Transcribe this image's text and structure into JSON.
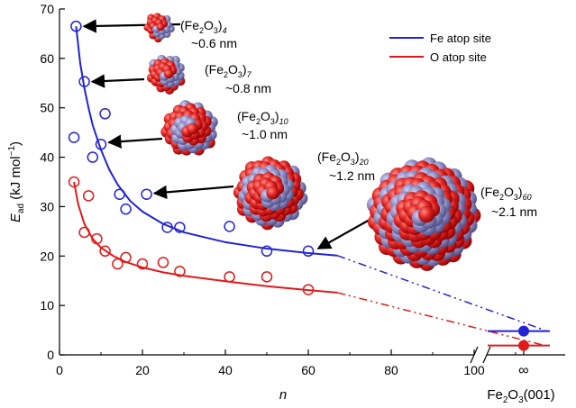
{
  "chart_data": {
    "type": "scatter",
    "title": "",
    "xlabel": "n",
    "ylabel_main": "E",
    "ylabel_sub": "ad",
    "ylabel_unit": "(kJ mol",
    "ylabel_unit_sup": "−1",
    "ylabel_unit_close": ")",
    "xlim": [
      0,
      115
    ],
    "ylim": [
      0,
      70
    ],
    "x_ticks": [
      "0",
      "20",
      "40",
      "60",
      "80",
      "100"
    ],
    "x_tick_values": [
      0,
      20,
      40,
      60,
      80,
      100
    ],
    "y_ticks": [
      "0",
      "10",
      "20",
      "30",
      "40",
      "50",
      "60",
      "70"
    ],
    "y_tick_values": [
      0,
      10,
      20,
      30,
      40,
      50,
      60,
      70
    ],
    "infinity_label": "∞",
    "surface_label": "Fe",
    "surface_label_sub1": "2",
    "surface_label_mid": "O",
    "surface_label_sub2": "3",
    "surface_label_end": "(001)",
    "legend_position": "top-right",
    "series": [
      {
        "name": "Fe atop site",
        "color": "#2222d6",
        "points": [
          [
            4,
            66.5
          ],
          [
            6,
            55.3
          ],
          [
            11,
            48.8
          ],
          [
            3.5,
            44
          ],
          [
            8,
            40
          ],
          [
            10,
            42.6
          ],
          [
            14.5,
            32.5
          ],
          [
            16,
            29.5
          ],
          [
            21,
            32.5
          ],
          [
            26,
            25.8
          ],
          [
            29,
            25.8
          ],
          [
            41,
            26
          ],
          [
            50,
            21
          ],
          [
            60,
            21
          ]
        ],
        "fit_solid": [
          [
            4,
            66.5
          ],
          [
            5,
            59
          ],
          [
            6,
            54
          ],
          [
            7,
            50
          ],
          [
            8,
            46.5
          ],
          [
            10,
            41.5
          ],
          [
            12,
            37.5
          ],
          [
            14,
            34.5
          ],
          [
            17,
            31.2
          ],
          [
            20,
            29
          ],
          [
            25,
            26.5
          ],
          [
            30,
            24.8
          ],
          [
            40,
            22.8
          ],
          [
            50,
            21.5
          ],
          [
            60,
            20.6
          ],
          [
            67,
            20.1
          ]
        ],
        "fit_dashed": [
          [
            67,
            20.1
          ],
          [
            117,
            5
          ]
        ],
        "surface_value": 4.8
      },
      {
        "name": "O atop site",
        "color": "#e01a1a",
        "points": [
          [
            3.5,
            35
          ],
          [
            7,
            32.2
          ],
          [
            6,
            24.8
          ],
          [
            9,
            23.5
          ],
          [
            11,
            21
          ],
          [
            14,
            18.4
          ],
          [
            16,
            19.7
          ],
          [
            20,
            18.4
          ],
          [
            25,
            18.7
          ],
          [
            29,
            16.9
          ],
          [
            41,
            15.8
          ],
          [
            50,
            15.8
          ],
          [
            60,
            13.2
          ]
        ],
        "fit_solid": [
          [
            3.5,
            35
          ],
          [
            4.5,
            30.5
          ],
          [
            6,
            26.5
          ],
          [
            8,
            23.5
          ],
          [
            10,
            21.7
          ],
          [
            13,
            20
          ],
          [
            16,
            18.8
          ],
          [
            20,
            17.7
          ],
          [
            25,
            16.7
          ],
          [
            30,
            16
          ],
          [
            40,
            14.9
          ],
          [
            50,
            13.9
          ],
          [
            60,
            13.1
          ],
          [
            67,
            12.6
          ]
        ],
        "fit_dashed": [
          [
            67,
            12.6
          ],
          [
            117,
            1.9
          ]
        ],
        "surface_value": 1.9
      }
    ],
    "annotations": [
      {
        "base": "(Fe",
        "sub1": "2",
        "mid": "O",
        "sub2": "3",
        "close": ")",
        "n": "4",
        "size": "~0.6 nm",
        "arrow_to": [
          5,
          66.5
        ]
      },
      {
        "base": "(Fe",
        "sub1": "2",
        "mid": "O",
        "sub2": "3",
        "close": ")",
        "n": "7",
        "size": "~0.8 nm",
        "arrow_to": [
          7,
          55.3
        ]
      },
      {
        "base": "(Fe",
        "sub1": "2",
        "mid": "O",
        "sub2": "3",
        "close": ")",
        "n": "10",
        "size": "~1.0 nm",
        "arrow_to": [
          11,
          43
        ]
      },
      {
        "base": "(Fe",
        "sub1": "2",
        "mid": "O",
        "sub2": "3",
        "close": ")",
        "n": "20",
        "size": "~1.2 nm",
        "arrow_to": [
          22,
          32.7
        ]
      },
      {
        "base": "(Fe",
        "sub1": "2",
        "mid": "O",
        "sub2": "3",
        "close": ")",
        "n": "60",
        "size": "~2.1 nm",
        "arrow_to": [
          61.5,
          21.5
        ]
      }
    ],
    "grid": false
  }
}
